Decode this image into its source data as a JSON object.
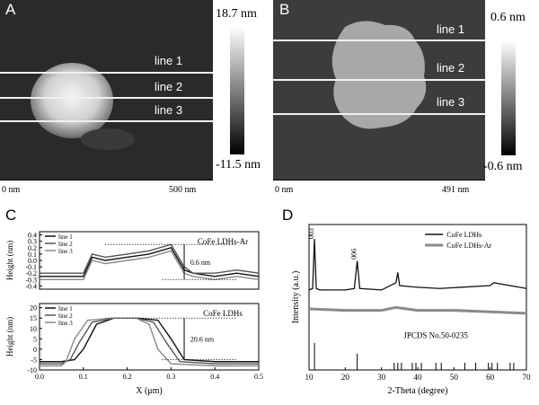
{
  "panels": {
    "A": {
      "label": "A",
      "scale_max": "18.7 nm",
      "scale_min": "-11.5 nm",
      "x_start": "0 nm",
      "x_end": "500 nm",
      "lines": [
        "line 1",
        "line 2",
        "line 3"
      ]
    },
    "B": {
      "label": "B",
      "scale_max": "0.6 nm",
      "scale_min": "-0.6 nm",
      "x_start": "0 nm",
      "x_end": "491 nm",
      "lines": [
        "line 1",
        "line 2",
        "line 3"
      ]
    },
    "C": {
      "label": "C",
      "top": {
        "title": "CoFe LDHs-Ar",
        "ylabel": "Height (nm)",
        "annotation": "0.6 nm",
        "legend": [
          "line 1",
          "line 2",
          "line 3"
        ],
        "yticks": [
          "0.4",
          "0.3",
          "0.2",
          "0.1",
          "0.0",
          "-0.1",
          "-0.2",
          "-0.3",
          "-0.4"
        ]
      },
      "bottom": {
        "title": "CoFe LDHs",
        "ylabel": "Height (nm)",
        "annotation": "20.6 nm",
        "legend": [
          "line 1",
          "line 2",
          "line 3"
        ],
        "yticks": [
          "20",
          "15",
          "10",
          "5",
          "0",
          "-5",
          "-10"
        ]
      },
      "xlabel": "X (μm)",
      "xticks": [
        "0.0",
        "0.1",
        "0.2",
        "0.3",
        "0.4",
        "0.5"
      ]
    },
    "D": {
      "label": "D",
      "legend": [
        "CoFe LDHs",
        "CoFe LDHs-Ar"
      ],
      "peak_labels": [
        "003",
        "006"
      ],
      "reference": "JPCDS No.50-0235",
      "ylabel": "Intensity (a.u.)",
      "xlabel": "2-Theta (degree)",
      "xticks": [
        "10",
        "20",
        "30",
        "40",
        "50",
        "60",
        "70"
      ]
    }
  },
  "chart_data": [
    {
      "type": "line",
      "title": "CoFe LDHs-Ar",
      "xlabel": "X (μm)",
      "ylabel": "Height (nm)",
      "xlim": [
        0,
        0.5
      ],
      "ylim": [
        -0.45,
        0.45
      ],
      "series": [
        {
          "name": "line 1",
          "x": [
            0.0,
            0.1,
            0.12,
            0.15,
            0.2,
            0.25,
            0.3,
            0.33,
            0.35,
            0.4,
            0.45,
            0.5
          ],
          "y": [
            -0.25,
            -0.25,
            0.05,
            0.0,
            0.05,
            0.1,
            0.2,
            -0.15,
            -0.2,
            -0.25,
            -0.2,
            -0.25
          ]
        },
        {
          "name": "line 2",
          "x": [
            0.0,
            0.1,
            0.12,
            0.15,
            0.2,
            0.25,
            0.3,
            0.33,
            0.35,
            0.4,
            0.45,
            0.5
          ],
          "y": [
            -0.2,
            -0.2,
            0.1,
            0.05,
            0.1,
            0.15,
            0.25,
            -0.1,
            -0.2,
            -0.2,
            -0.15,
            -0.2
          ]
        },
        {
          "name": "line 3",
          "x": [
            0.0,
            0.1,
            0.12,
            0.15,
            0.2,
            0.25,
            0.3,
            0.33,
            0.35,
            0.4,
            0.45,
            0.5
          ],
          "y": [
            -0.3,
            -0.3,
            0.0,
            -0.05,
            0.0,
            0.05,
            0.15,
            -0.2,
            -0.25,
            -0.3,
            -0.25,
            -0.3
          ]
        }
      ]
    },
    {
      "type": "line",
      "title": "CoFe LDHs",
      "xlabel": "X (μm)",
      "ylabel": "Height (nm)",
      "xlim": [
        0,
        0.5
      ],
      "ylim": [
        -10,
        22
      ],
      "series": [
        {
          "name": "line 1",
          "x": [
            0.0,
            0.05,
            0.08,
            0.1,
            0.13,
            0.17,
            0.22,
            0.27,
            0.3,
            0.33,
            0.4,
            0.5
          ],
          "y": [
            -6,
            -6,
            -5,
            0,
            12,
            15,
            15,
            14,
            5,
            -5,
            -6,
            -6
          ]
        },
        {
          "name": "line 2",
          "x": [
            0.0,
            0.05,
            0.07,
            0.09,
            0.12,
            0.17,
            0.22,
            0.26,
            0.29,
            0.32,
            0.4,
            0.5
          ],
          "y": [
            -7,
            -7,
            -5,
            3,
            13,
            15,
            15,
            13,
            3,
            -6,
            -7,
            -7
          ]
        },
        {
          "name": "line 3",
          "x": [
            0.0,
            0.05,
            0.06,
            0.08,
            0.11,
            0.17,
            0.22,
            0.25,
            0.27,
            0.3,
            0.4,
            0.5
          ],
          "y": [
            -8,
            -8,
            -6,
            5,
            14,
            15,
            15,
            12,
            0,
            -7,
            -8,
            -8
          ]
        }
      ]
    },
    {
      "type": "line",
      "xlabel": "2-Theta (degree)",
      "ylabel": "Intensity (a.u.)",
      "xlim": [
        10,
        70
      ],
      "series": [
        {
          "name": "CoFe LDHs",
          "x": [
            10,
            11,
            11.5,
            12,
            13,
            20,
            22.5,
            23.3,
            24,
            30,
            34,
            34.5,
            35,
            39,
            46,
            60,
            61,
            70
          ],
          "y": [
            0.55,
            0.56,
            0.9,
            0.56,
            0.55,
            0.55,
            0.56,
            0.75,
            0.56,
            0.55,
            0.6,
            0.67,
            0.58,
            0.57,
            0.56,
            0.58,
            0.6,
            0.56
          ]
        },
        {
          "name": "CoFe LDHs-Ar",
          "x": [
            10,
            20,
            30,
            34,
            40,
            50,
            60,
            70
          ],
          "y": [
            0.42,
            0.41,
            0.41,
            0.43,
            0.41,
            0.41,
            0.4,
            0.39
          ]
        }
      ],
      "reference_lines": {
        "name": "JPCDS No.50-0235",
        "x": [
          11.5,
          23.3,
          33.5,
          34.5,
          35.5,
          38.5,
          39.5,
          41,
          45,
          46.5,
          53,
          56,
          59.5,
          60.5,
          62,
          65.5,
          66.5
        ]
      }
    }
  ]
}
